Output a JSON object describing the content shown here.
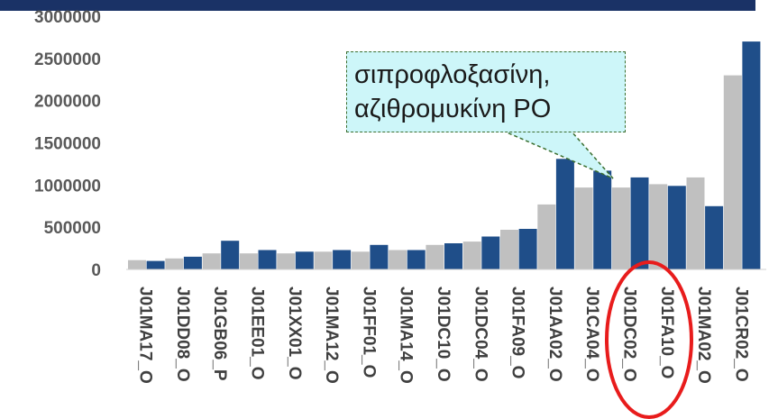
{
  "colors": {
    "header": "#1a3266",
    "series_a": "#c0c0c0",
    "series_b": "#1f4e89",
    "callout_fill": "#cdf6f9",
    "callout_border": "#3b6e2f",
    "highlight": "#e81c1c"
  },
  "callout": {
    "line1": "σιπροφλοξασίνη,",
    "line2": "αζιθρομυκίνη PO"
  },
  "chart_data": {
    "type": "bar",
    "title": "",
    "xlabel": "",
    "ylabel": "",
    "ylim": [
      0,
      3000000
    ],
    "yticks": [
      "0",
      "500000",
      "1000000",
      "1500000",
      "2000000",
      "2500000",
      "3000000"
    ],
    "categories": [
      "J01MA17_O",
      "J01DD08_O",
      "J01GB06_P",
      "J01EE01_O",
      "J01XX01_O",
      "J01MA12_O",
      "J01FF01_O",
      "J01MA14_O",
      "J01DC10_O",
      "J01DC04_O",
      "J01FA09_O",
      "J01AA02_O",
      "J01CA04_O",
      "J01DC02_O",
      "J01FA10_O",
      "J01MA02_O",
      "J01CR02_O"
    ],
    "series": [
      {
        "values": [
          110000,
          130000,
          190000,
          190000,
          190000,
          210000,
          210000,
          230000,
          290000,
          330000,
          470000,
          770000,
          970000,
          970000,
          1010000,
          1090000,
          2300000
        ]
      },
      {
        "values": [
          100000,
          150000,
          340000,
          230000,
          210000,
          230000,
          290000,
          230000,
          310000,
          390000,
          480000,
          1310000,
          1170000,
          1090000,
          990000,
          750000,
          2700000
        ]
      }
    ],
    "grid": false,
    "legend": "none"
  }
}
